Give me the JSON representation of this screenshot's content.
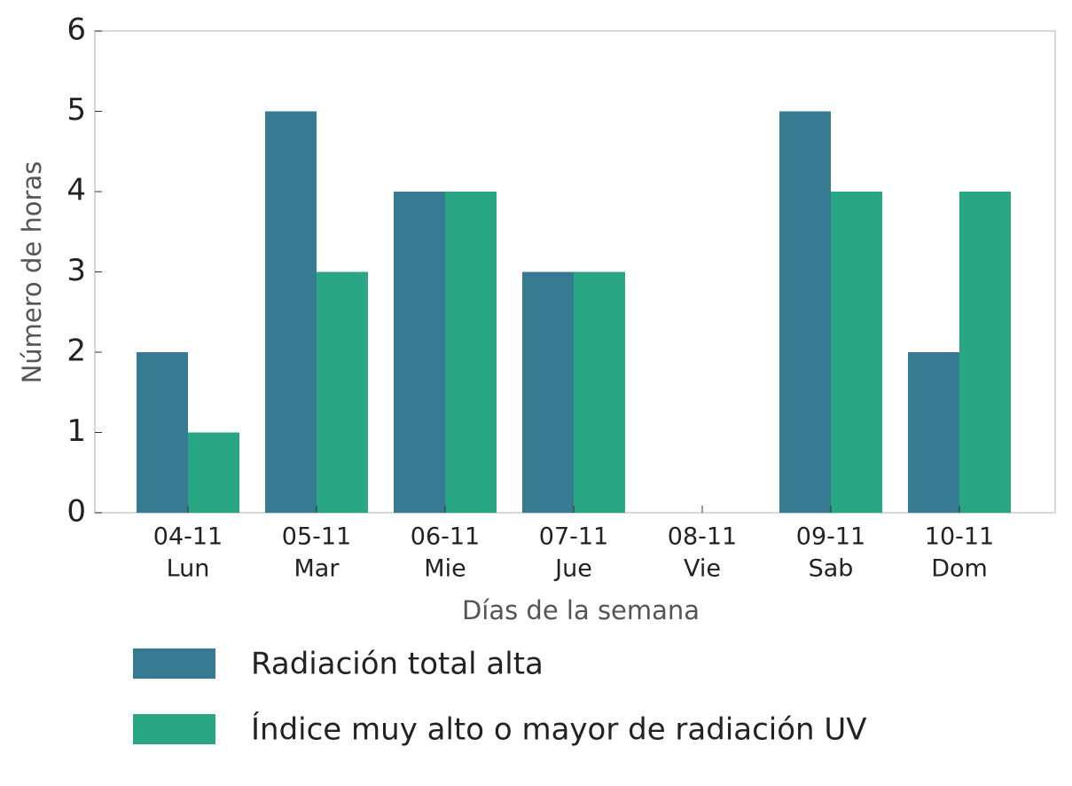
{
  "chart_data": {
    "type": "bar",
    "x_label": "Días de la semana",
    "y_label": "Número de horas",
    "categories": [
      [
        "04-11",
        "Lun"
      ],
      [
        "05-11",
        "Mar"
      ],
      [
        "06-11",
        "Mie"
      ],
      [
        "07-11",
        "Jue"
      ],
      [
        "08-11",
        "Vie"
      ],
      [
        "09-11",
        "Sab"
      ],
      [
        "10-11",
        "Dom"
      ]
    ],
    "series": [
      {
        "name": "Radiación total alta",
        "color": "#377b92",
        "values": [
          2,
          5,
          4,
          3,
          0,
          5,
          2
        ]
      },
      {
        "name": "Índice muy alto o mayor de radiación UV",
        "color": "#29a784",
        "values": [
          1,
          3,
          4,
          3,
          0,
          4,
          4
        ]
      }
    ],
    "ylim": [
      0,
      6
    ],
    "yticks": [
      0,
      1,
      2,
      3,
      4,
      5,
      6
    ],
    "grid": false
  }
}
